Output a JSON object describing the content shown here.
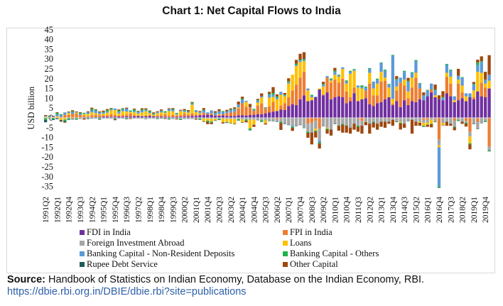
{
  "chart_data": {
    "type": "bar",
    "stacked": true,
    "title": "Chart 1: Net Capital Flows to India",
    "ylabel": "USD billion",
    "xlabel": "",
    "ylim": [
      -35,
      45
    ],
    "ytick_step": 5,
    "grid": false,
    "legend_position": "bottom",
    "first_quarter": "1991Q2",
    "categories_count": 116,
    "xtick_every": 3,
    "series": [
      {
        "name": "FDI in India",
        "color": "#7030a0",
        "values": [
          0.05,
          0.05,
          0.1,
          0.1,
          0.1,
          0.1,
          0.15,
          0.2,
          0.2,
          0.3,
          0.3,
          0.4,
          0.3,
          0.4,
          0.5,
          0.6,
          0.6,
          0.5,
          0.6,
          0.7,
          0.6,
          0.7,
          0.7,
          0.8,
          0.9,
          0.8,
          0.9,
          0.9,
          0.7,
          0.6,
          0.6,
          0.6,
          0.5,
          0.5,
          0.6,
          0.6,
          0.7,
          0.8,
          0.9,
          1.0,
          1.3,
          1.4,
          1.6,
          1.5,
          1.2,
          1.1,
          1.3,
          1.0,
          0.9,
          1.0,
          1.3,
          1.4,
          1.2,
          1.5,
          1.6,
          1.8,
          1.9,
          2.3,
          2.8,
          3.2,
          3.5,
          4.3,
          4.0,
          6.0,
          7.0,
          6.5,
          9.5,
          11.5,
          8.5,
          9.0,
          10.5,
          14.5,
          11.5,
          13.0,
          9.5,
          10.5,
          11.0,
          10.5,
          7.5,
          8.5,
          12.5,
          8.5,
          9.5,
          10.0,
          7.0,
          6.0,
          7.5,
          8.0,
          9.5,
          10.5,
          6.5,
          8.5,
          5.5,
          9.0,
          6.5,
          8.5,
          8.0,
          9.5,
          9.0,
          11.0,
          13.0,
          10.5,
          9.5,
          9.0,
          12.5,
          11.0,
          8.0,
          9.0,
          10.0,
          8.5,
          10.5,
          9.5,
          13.5,
          11.0,
          10.5,
          15.0
        ]
      },
      {
        "name": "FPI in India",
        "color": "#ed7d31",
        "values": [
          0,
          0,
          0.1,
          0.2,
          0.5,
          1.5,
          1.3,
          1.8,
          2.0,
          1.2,
          0.8,
          0.4,
          1.0,
          1.2,
          0.9,
          0.8,
          0.7,
          1.3,
          0.9,
          0.5,
          0.8,
          1.0,
          1.5,
          0.6,
          0.3,
          0.2,
          -0.3,
          0.5,
          0.4,
          0.6,
          0.7,
          1.2,
          0.5,
          1.0,
          0.6,
          0.8,
          1.6,
          0.9,
          1.3,
          0.7,
          0.6,
          1.2,
          0.4,
          0.8,
          0.2,
          0.3,
          0.5,
          1.5,
          1.8,
          2.2,
          3.5,
          6.0,
          4.5,
          3.8,
          2.0,
          4.5,
          5.5,
          2.5,
          3.0,
          5.0,
          -0.8,
          2.0,
          3.5,
          4.5,
          7.0,
          10.5,
          11.0,
          12.0,
          -3.0,
          -2.5,
          -1.5,
          -5.5,
          0.5,
          7.5,
          8.5,
          9.0,
          7.0,
          9.5,
          6.0,
          2.0,
          3.0,
          -0.5,
          -1.5,
          4.0,
          10.5,
          5.5,
          4.0,
          10.5,
          9.5,
          -0.5,
          0.7,
          5.5,
          12.5,
          7.5,
          3.5,
          7.0,
          12.5,
          5.5,
          -1.0,
          -1.0,
          1.5,
          -0.5,
          -11.0,
          -0.2,
          8.5,
          6.5,
          -1.5,
          8.5,
          3.0,
          -1.5,
          -7.0,
          1.0,
          -2.0,
          7.0,
          5.0,
          -14.5
        ]
      },
      {
        "name": "Foreign Investment Abroad",
        "color": "#a5a5a5",
        "values": [
          -0.05,
          -0.05,
          -0.05,
          -0.05,
          -0.1,
          -0.05,
          -0.1,
          -0.1,
          -0.1,
          -0.1,
          -0.1,
          -0.1,
          -0.1,
          -0.1,
          -0.1,
          -0.1,
          -0.1,
          -0.1,
          -0.1,
          -0.1,
          -0.1,
          -0.1,
          -0.1,
          -0.1,
          -0.1,
          -0.1,
          -0.1,
          -0.1,
          -0.1,
          -0.1,
          -0.2,
          -0.2,
          -0.2,
          -0.3,
          -0.3,
          -0.3,
          -0.3,
          -0.3,
          -0.3,
          -0.3,
          -0.3,
          -0.4,
          -0.4,
          -0.4,
          -0.5,
          -0.5,
          -0.5,
          -0.6,
          -0.6,
          -0.6,
          -0.7,
          -0.8,
          -0.8,
          -0.9,
          -1.0,
          -1.0,
          -1.2,
          -1.3,
          -1.4,
          -1.5,
          -1.0,
          -2.0,
          -3.0,
          -3.5,
          -4.0,
          -4.0,
          -3.5,
          -5.0,
          -4.0,
          -5.0,
          -4.0,
          -6.0,
          -4.0,
          -5.0,
          -6.0,
          -3.0,
          -4.0,
          -3.0,
          -4.0,
          -5.0,
          -3.0,
          -3.5,
          -2.5,
          -2.0,
          -3.0,
          -2.0,
          -3.0,
          -2.0,
          -2.0,
          -1.5,
          -1.0,
          -2.0,
          -2.0,
          -3.0,
          -1.5,
          -1.0,
          -2.0,
          -2.0,
          -1.5,
          -1.5,
          -1.0,
          -1.5,
          -3.0,
          -2.5,
          -2.0,
          -3.0,
          -3.0,
          -1.0,
          -2.0,
          -1.0,
          -2.5,
          -3.0,
          -3.5,
          -2.5,
          -1.5,
          -2.0
        ]
      },
      {
        "name": "Loans",
        "color": "#ffc000",
        "values": [
          0.5,
          0.3,
          0.2,
          0.5,
          -1.0,
          -0.8,
          1.0,
          -0.3,
          0.5,
          -0.2,
          0.8,
          1.2,
          1.5,
          0.8,
          0.6,
          0.7,
          1.3,
          2.0,
          2.5,
          1.0,
          2.0,
          1.5,
          0.8,
          1.5,
          1.0,
          1.8,
          2.5,
          1.0,
          0.5,
          1.2,
          1.5,
          0.8,
          2.5,
          1.8,
          0.5,
          2.0,
          0.7,
          1.0,
          4.5,
          1.2,
          0.5,
          -1.5,
          -1.0,
          -1.5,
          -0.8,
          0.5,
          -1.8,
          -1.5,
          -2.0,
          -2.5,
          0.5,
          -1.5,
          2.5,
          -4.5,
          -2.5,
          1.5,
          3.0,
          -1.5,
          4.5,
          2.5,
          6.0,
          5.5,
          3.5,
          7.0,
          8.0,
          9.5,
          8.0,
          5.5,
          5.5,
          1.5,
          -1.0,
          0.5,
          4.0,
          -0.5,
          1.0,
          2.5,
          3.0,
          5.0,
          4.0,
          12.0,
          8.5,
          7.0,
          5.5,
          -0.2,
          5.5,
          3.5,
          6.0,
          5.0,
          1.5,
          5.0,
          2.5,
          2.0,
          -0.5,
          3.0,
          3.5,
          5.0,
          2.5,
          -0.5,
          -1.5,
          -1.0,
          -2.0,
          1.0,
          -1.0,
          -1.0,
          2.0,
          3.5,
          1.0,
          2.0,
          3.5,
          2.5,
          -3.5,
          3.5,
          10.0,
          5.0,
          2.0,
          4.0
        ]
      },
      {
        "name": "Banking Capital - Non-Resident Deposits",
        "color": "#5b9bd5",
        "values": [
          0.5,
          0.3,
          0.6,
          1.0,
          0.8,
          1.2,
          0.5,
          0.9,
          0.4,
          0.5,
          0.3,
          0.8,
          1.0,
          1.2,
          0.9,
          0.6,
          0.7,
          0.5,
          0.8,
          1.0,
          0.8,
          1.5,
          0.3,
          0.6,
          0.8,
          1.0,
          0.6,
          0.5,
          0.4,
          0.6,
          0.7,
          0.3,
          1.0,
          0.6,
          0.5,
          0.4,
          0.6,
          0.4,
          0.5,
          0.7,
          0.6,
          1.2,
          0.8,
          1.5,
          1.0,
          1.5,
          1.2,
          0.8,
          1.2,
          1.3,
          1.5,
          2.0,
          0.5,
          0.3,
          0.5,
          1.0,
          0.6,
          0.3,
          1.5,
          1.2,
          1.0,
          1.5,
          0.5,
          0.7,
          -0.5,
          0.5,
          0.8,
          0.5,
          1.0,
          0.8,
          0.3,
          -1.0,
          1.0,
          0.8,
          0.5,
          1.5,
          0.6,
          0.8,
          1.0,
          1.0,
          0.5,
          1.0,
          0.8,
          1.5,
          2.0,
          3.5,
          2.0,
          4.5,
          3.5,
          1.5,
          22.0,
          3.5,
          2.5,
          4.0,
          5.0,
          2.5,
          6.0,
          2.5,
          2.5,
          3.0,
          3.0,
          2.5,
          -20.0,
          1.2,
          4.0,
          3.0,
          2.0,
          2.0,
          4.0,
          1.5,
          2.0,
          3.0,
          3.5,
          5.5,
          2.0,
          3.0
        ]
      },
      {
        "name": "Banking Capital - Others",
        "color": "#22b14c",
        "values": [
          -1.0,
          0.3,
          -0.5,
          0.8,
          0.5,
          -0.8,
          -0.6,
          0.5,
          -0.5,
          0.6,
          0.4,
          -0.3,
          0.8,
          0.5,
          -0.5,
          0.3,
          0.7,
          0.4,
          -0.4,
          0.6,
          0.5,
          -0.4,
          0.5,
          0.8,
          0.3,
          0.5,
          0.4,
          0.6,
          0.3,
          -0.3,
          0.2,
          0.5,
          -0.4,
          0.6,
          0.3,
          -0.5,
          0.4,
          0.3,
          0.5,
          0.3,
          -0.5,
          0.4,
          -0.5,
          -0.6,
          0.3,
          -0.4,
          0.5,
          -0.3,
          0.4,
          0.3,
          -0.5,
          0.4,
          -0.6,
          -0.8,
          0.5,
          0.4,
          -0.6,
          0.3,
          0.5,
          0.8,
          0.5,
          -0.6,
          0.4,
          0.5,
          -0.6,
          0.6,
          0.4,
          0.5,
          -0.6,
          0.5,
          -0.5,
          -0.6,
          0.4,
          -0.5,
          0.6,
          0.5,
          0.4,
          -0.5,
          0.6,
          0.5,
          0.4,
          -0.5,
          0.8,
          0.5,
          0.4,
          -0.4,
          0.5,
          0.3,
          0.6,
          0.3,
          0.4,
          0.3,
          -0.4,
          0.5,
          0.4,
          0.3,
          0.5,
          0.3,
          -0.4,
          0.3,
          -0.3,
          0.5,
          -0.5,
          0.4,
          0.5,
          0.6,
          -0.3,
          -0.4,
          0.3,
          -0.4,
          -0.5,
          0.3,
          1.2,
          0.4,
          -0.4,
          -0.4
        ]
      },
      {
        "name": "Rupee Debt Service",
        "color": "#1d5c5a",
        "values": [
          -1.2,
          -0.3,
          -0.5,
          -0.6,
          -0.4,
          -0.5,
          -0.3,
          -0.4,
          -0.3,
          -0.2,
          -0.3,
          -0.2,
          -0.3,
          -0.2,
          -0.3,
          -0.2,
          -0.2,
          -0.2,
          -0.3,
          -0.2,
          -0.2,
          -0.2,
          -0.2,
          -0.2,
          -0.2,
          -0.2,
          -0.2,
          -0.2,
          -0.2,
          -0.2,
          -0.2,
          -0.1,
          -0.1,
          -0.1,
          -0.1,
          -0.1,
          -0.1,
          -0.1,
          -0.1,
          -0.1,
          -0.1,
          -0.1,
          -0.1,
          -0.1,
          -0.1,
          -0.1,
          -0.1,
          -0.1,
          -0.1,
          -0.1,
          -0.1,
          -0.1,
          -0.1,
          -0.1,
          -0.1,
          -0.1,
          -0.1,
          -0.1,
          -0.1,
          -0.1,
          -0.05,
          -0.05,
          -0.05,
          -0.05,
          -0.05,
          -0.05,
          -0.05,
          -0.05,
          -0.05,
          -0.05,
          -0.05,
          -0.05,
          -0.05,
          -0.05,
          -0.05,
          -0.05,
          -0.05,
          -0.05,
          -0.05,
          -0.05,
          -0.05,
          -0.05,
          -0.05,
          -0.05,
          -0.05,
          -0.05,
          -0.05,
          -0.05,
          -0.05,
          -0.05,
          -0.05,
          -0.05,
          -0.05,
          -0.05,
          -0.05,
          -0.05,
          -0.05,
          -0.05,
          -0.05,
          -0.05,
          -0.05,
          -0.05,
          -0.05,
          -0.05,
          -0.05,
          -0.05,
          -0.05,
          -0.05,
          -0.05,
          -0.05,
          -0.05,
          -0.05,
          -0.05,
          -0.05,
          -0.05,
          -0.05
        ]
      },
      {
        "name": "Other Capital",
        "color": "#9e480e",
        "values": [
          0.4,
          0.2,
          0.1,
          0.3,
          -0.5,
          -0.3,
          0.3,
          0.5,
          0.2,
          0.3,
          -0.5,
          0.5,
          0.6,
          0.3,
          0.4,
          0.7,
          0.5,
          0.3,
          -0.4,
          0.5,
          0.2,
          0.5,
          -0.3,
          0.4,
          0.3,
          0.6,
          0.5,
          0.3,
          0.5,
          0.4,
          0.6,
          -0.3,
          0.4,
          0.5,
          -0.4,
          0.3,
          0.5,
          0.6,
          0.4,
          -0.5,
          0.5,
          0.8,
          -1.2,
          -0.6,
          0.7,
          1.0,
          -0.5,
          0.8,
          0.5,
          0.6,
          1.5,
          1.0,
          -0.8,
          1.5,
          -1.0,
          0.5,
          1.5,
          -0.5,
          1.0,
          3.0,
          1.0,
          -3.5,
          0.8,
          1.5,
          -1.5,
          2.0,
          3.0,
          3.5,
          -2.5,
          -6.0,
          -3.0,
          -2.5,
          1.0,
          -2.0,
          -3.0,
          1.5,
          -2.5,
          -4.0,
          -3.5,
          -3.0,
          -3.0,
          -2.5,
          -4.0,
          -1.5,
          -5.0,
          -2.5,
          -3.0,
          -2.5,
          -3.0,
          -1.0,
          -3.0,
          1.5,
          -3.0,
          -2.0,
          1.5,
          -7.0,
          -2.0,
          -1.5,
          1.5,
          -1.0,
          -1.5,
          2.5,
          2.0,
          3.0,
          -2.0,
          -1.0,
          -1.5,
          3.5,
          -1.0,
          -1.5,
          -2.5,
          1.0,
          1.5,
          2.5,
          4.0,
          10.0
        ]
      }
    ]
  },
  "source": {
    "label": "Source:",
    "text": " Handbook of Statistics on Indian Economy, Database on the Indian Economy, RBI.",
    "url": "https://dbie.rbi.org.in/DBIE/dbie.rbi?site=publications"
  }
}
